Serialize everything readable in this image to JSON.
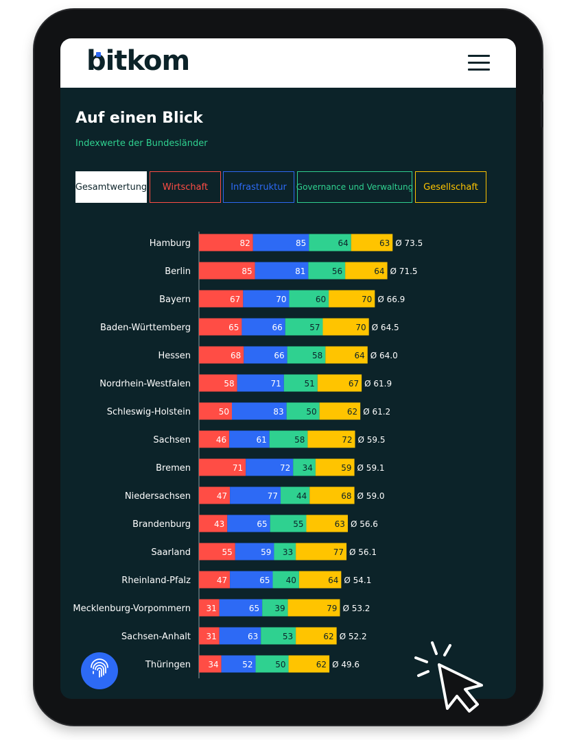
{
  "header": {
    "logo_text": "bitkom",
    "menu_icon": "hamburger-menu-icon"
  },
  "page": {
    "title": "Auf einen Blick",
    "subtitle": "Indexwerte der Bundesländer"
  },
  "tabs": [
    {
      "label": "Gesamtwertung",
      "active": true
    },
    {
      "label": "Wirtschaft",
      "color": "#ff4d45"
    },
    {
      "label": "Infrastruktur",
      "color": "#2d6af5"
    },
    {
      "label": "Governance und Verwaltung",
      "color": "#2fd190"
    },
    {
      "label": "Gesellschaft",
      "color": "#ffc400"
    }
  ],
  "fab_icon": "fingerprint-icon",
  "decoration_icon": "click-cursor-icon",
  "chart_data": {
    "type": "bar",
    "orientation": "horizontal",
    "stacked": true,
    "categories": [
      "Hamburg",
      "Berlin",
      "Bayern",
      "Baden-Württemberg",
      "Hessen",
      "Nordrhein-Westfalen",
      "Schleswig-Holstein",
      "Sachsen",
      "Bremen",
      "Niedersachsen",
      "Brandenburg",
      "Saarland",
      "Rheinland-Pfalz",
      "Mecklenburg-Vorpommern",
      "Sachsen-Anhalt",
      "Thüringen"
    ],
    "series": [
      {
        "name": "Wirtschaft",
        "color": "#ff4d45",
        "values": [
          82,
          85,
          67,
          65,
          68,
          58,
          50,
          46,
          71,
          47,
          43,
          55,
          47,
          31,
          31,
          34
        ]
      },
      {
        "name": "Infrastruktur",
        "color": "#2d6af5",
        "values": [
          85,
          81,
          70,
          66,
          66,
          71,
          83,
          61,
          72,
          77,
          65,
          59,
          65,
          65,
          63,
          52
        ]
      },
      {
        "name": "Governance und Verwaltung",
        "color": "#2fd190",
        "values": [
          64,
          56,
          60,
          57,
          58,
          51,
          50,
          58,
          34,
          44,
          55,
          33,
          40,
          39,
          53,
          50
        ]
      },
      {
        "name": "Gesellschaft",
        "color": "#ffc400",
        "values": [
          63,
          64,
          70,
          70,
          64,
          67,
          62,
          72,
          59,
          68,
          63,
          77,
          64,
          79,
          62,
          62
        ]
      }
    ],
    "averages": [
      "Ø 73.5",
      "Ø 71.5",
      "Ø 66.9",
      "Ø 64.5",
      "Ø 64.0",
      "Ø 61.9",
      "Ø 61.2",
      "Ø 59.5",
      "Ø 59.1",
      "Ø 59.0",
      "Ø 56.6",
      "Ø 56.1",
      "Ø 54.1",
      "Ø 53.2",
      "Ø 52.2",
      "Ø 49.6"
    ],
    "title": "",
    "xlabel": "",
    "ylabel": "",
    "grid": false,
    "legend": "none"
  }
}
